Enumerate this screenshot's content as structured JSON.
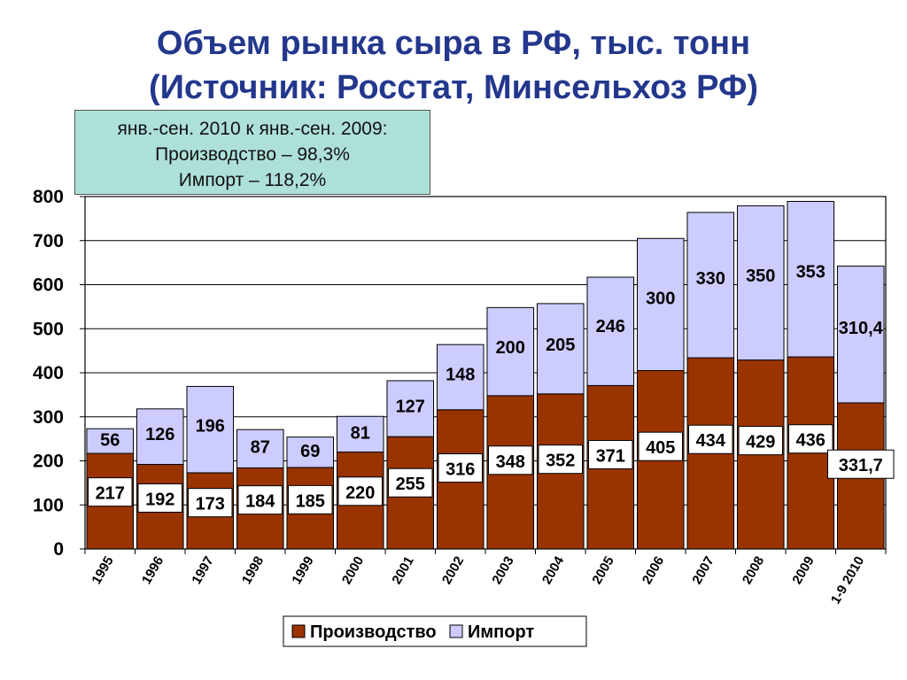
{
  "title": {
    "line1": "Объем рынка сыра в РФ, тыс. тонн",
    "line2": "(Источник: Росстат, Минсельхоз РФ)"
  },
  "note": {
    "line1": "янв.-сен. 2010 к янв.-сен. 2009:",
    "line2": "Производство – 98,3%",
    "line3": "Импорт – 118,2%"
  },
  "chart_data": {
    "type": "bar",
    "stacked": true,
    "categories": [
      "1995",
      "1996",
      "1997",
      "1998",
      "1999",
      "2000",
      "2001",
      "2002",
      "2003",
      "2004",
      "2005",
      "2006",
      "2007",
      "2008",
      "2009",
      "1-9 2010"
    ],
    "series": [
      {
        "name": "Производство",
        "color": "#993300",
        "values": [
          217,
          192,
          173,
          184,
          185,
          220,
          255,
          316,
          348,
          352,
          371,
          405,
          434,
          429,
          436,
          331.7
        ],
        "labels": [
          "217",
          "192",
          "173",
          "184",
          "185",
          "220",
          "255",
          "316",
          "348",
          "352",
          "371",
          "405",
          "434",
          "429",
          "436",
          "331,7"
        ]
      },
      {
        "name": "Импорт",
        "color": "#ccccff",
        "values": [
          56,
          126,
          196,
          87,
          69,
          81,
          127,
          148,
          200,
          205,
          246,
          300,
          330,
          350,
          353,
          310.4
        ],
        "labels": [
          "56",
          "126",
          "196",
          "87",
          "69",
          "81",
          "127",
          "148",
          "200",
          "205",
          "246",
          "300",
          "330",
          "350",
          "353",
          "310,4"
        ]
      }
    ],
    "ylim": [
      0,
      800
    ],
    "yticks": [
      0,
      100,
      200,
      300,
      400,
      500,
      600,
      700,
      800
    ],
    "grid": true,
    "legend": "bottom"
  }
}
